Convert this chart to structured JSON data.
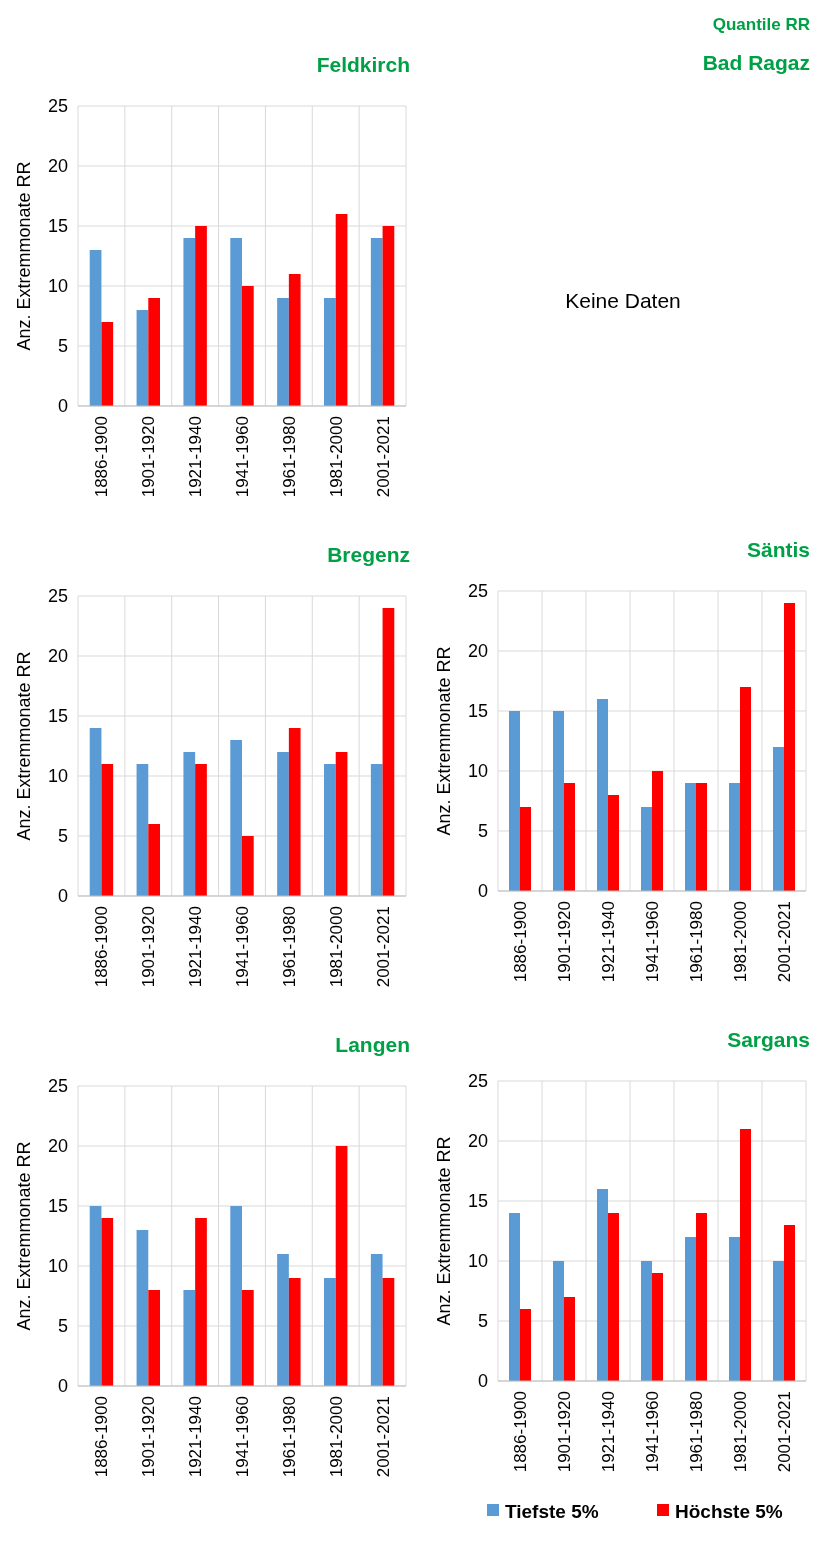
{
  "chart_data": [
    {
      "type": "other",
      "title": "Quantile RR"
    },
    {
      "type": "bar",
      "title": "Feldkirch",
      "ylabel": "Anz. Extremmonate RR",
      "categories": [
        "1886-1900",
        "1901-1920",
        "1921-1940",
        "1941-1960",
        "1961-1980",
        "1981-2000",
        "2001-2021"
      ],
      "ylim": [
        0,
        25
      ],
      "yticks": [
        0,
        5,
        10,
        15,
        20,
        25
      ],
      "grid": true,
      "series": [
        {
          "color": "#5b9bd5",
          "values": [
            13,
            8,
            14,
            14,
            9,
            9,
            14
          ]
        },
        {
          "color": "#ff0000",
          "values": [
            7,
            9,
            15,
            10,
            11,
            16,
            15
          ]
        }
      ]
    },
    {
      "type": "other",
      "title": "Bad Ragaz",
      "annotations": [
        "Keine Daten"
      ]
    },
    {
      "type": "bar",
      "title": "Bregenz",
      "ylabel": "Anz. Extremmonate RR",
      "categories": [
        "1886-1900",
        "1901-1920",
        "1921-1940",
        "1941-1960",
        "1961-1980",
        "1981-2000",
        "2001-2021"
      ],
      "ylim": [
        0,
        25
      ],
      "yticks": [
        0,
        5,
        10,
        15,
        20,
        25
      ],
      "grid": true,
      "series": [
        {
          "color": "#5b9bd5",
          "values": [
            14,
            11,
            12,
            13,
            12,
            11,
            11
          ]
        },
        {
          "color": "#ff0000",
          "values": [
            11,
            6,
            11,
            5,
            14,
            12,
            24
          ]
        }
      ]
    },
    {
      "type": "bar",
      "title": "Säntis",
      "ylabel": "Anz. Extremmonate RR",
      "categories": [
        "1886-1900",
        "1901-1920",
        "1921-1940",
        "1941-1960",
        "1961-1980",
        "1981-2000",
        "2001-2021"
      ],
      "ylim": [
        0,
        25
      ],
      "yticks": [
        0,
        5,
        10,
        15,
        20,
        25
      ],
      "grid": true,
      "series": [
        {
          "color": "#5b9bd5",
          "values": [
            15,
            15,
            16,
            7,
            9,
            9,
            12
          ]
        },
        {
          "color": "#ff0000",
          "values": [
            7,
            9,
            8,
            10,
            9,
            17,
            24
          ]
        }
      ]
    },
    {
      "type": "bar",
      "title": "Langen",
      "ylabel": "Anz. Extremmonate RR",
      "categories": [
        "1886-1900",
        "1901-1920",
        "1921-1940",
        "1941-1960",
        "1961-1980",
        "1981-2000",
        "2001-2021"
      ],
      "ylim": [
        0,
        25
      ],
      "yticks": [
        0,
        5,
        10,
        15,
        20,
        25
      ],
      "grid": true,
      "series": [
        {
          "color": "#5b9bd5",
          "values": [
            15,
            13,
            8,
            15,
            11,
            9,
            11
          ]
        },
        {
          "color": "#ff0000",
          "values": [
            14,
            8,
            14,
            8,
            9,
            20,
            9
          ]
        }
      ]
    },
    {
      "type": "bar",
      "title": "Sargans",
      "ylabel": "Anz. Extremmonate RR",
      "categories": [
        "1886-1900",
        "1901-1920",
        "1921-1940",
        "1941-1960",
        "1961-1980",
        "1981-2000",
        "2001-2021"
      ],
      "ylim": [
        0,
        25
      ],
      "yticks": [
        0,
        5,
        10,
        15,
        20,
        25
      ],
      "grid": true,
      "legend": "bottom",
      "series": [
        {
          "name": "Tiefste 5%",
          "color": "#5b9bd5",
          "values": [
            14,
            10,
            16,
            10,
            12,
            12,
            10
          ]
        },
        {
          "name": "Höchste 5%",
          "color": "#ff0000",
          "values": [
            6,
            7,
            14,
            9,
            14,
            21,
            13
          ]
        }
      ]
    }
  ]
}
